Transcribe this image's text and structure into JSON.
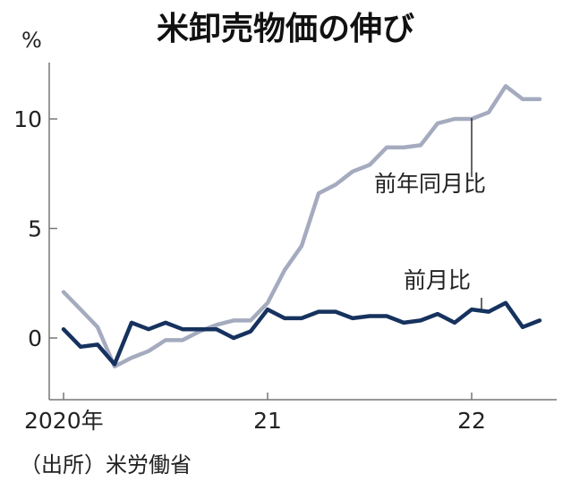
{
  "chart_data": {
    "type": "line",
    "title": "米卸売物価の伸び",
    "unit": "%",
    "source": "（出所）米労働省",
    "x": [
      "2020-01",
      "2020-02",
      "2020-03",
      "2020-04",
      "2020-05",
      "2020-06",
      "2020-07",
      "2020-08",
      "2020-09",
      "2020-10",
      "2020-11",
      "2020-12",
      "2021-01",
      "2021-02",
      "2021-03",
      "2021-04",
      "2021-05",
      "2021-06",
      "2021-07",
      "2021-08",
      "2021-09",
      "2021-10",
      "2021-11",
      "2021-12",
      "2022-01",
      "2022-02",
      "2022-03",
      "2022-04",
      "2022-05"
    ],
    "x_ticks": [
      {
        "x": "2020-01",
        "label": "2020年"
      },
      {
        "x": "2021-01",
        "label": "21"
      },
      {
        "x": "2022-01",
        "label": "22"
      }
    ],
    "y_ticks": [
      0,
      5,
      10
    ],
    "ylim": [
      -2.5,
      12.5
    ],
    "series": [
      {
        "name": "前年同月比",
        "color": "#a5abbf",
        "values": [
          2.1,
          1.3,
          0.5,
          -1.3,
          -0.9,
          -0.6,
          -0.1,
          -0.1,
          0.3,
          0.6,
          0.8,
          0.8,
          1.6,
          3.1,
          4.2,
          6.6,
          7.0,
          7.6,
          7.9,
          8.7,
          8.7,
          8.8,
          9.8,
          10.0,
          10.0,
          10.3,
          11.5,
          10.9,
          10.9
        ]
      },
      {
        "name": "前月比",
        "color": "#16325e",
        "values": [
          0.4,
          -0.4,
          -0.3,
          -1.2,
          0.7,
          0.4,
          0.7,
          0.4,
          0.4,
          0.4,
          0.0,
          0.3,
          1.3,
          0.9,
          0.9,
          1.2,
          1.2,
          0.9,
          1.0,
          1.0,
          0.7,
          0.8,
          1.1,
          0.7,
          1.3,
          1.2,
          1.6,
          0.5,
          0.8
        ]
      }
    ],
    "colors": {
      "axis": "#777777"
    }
  }
}
